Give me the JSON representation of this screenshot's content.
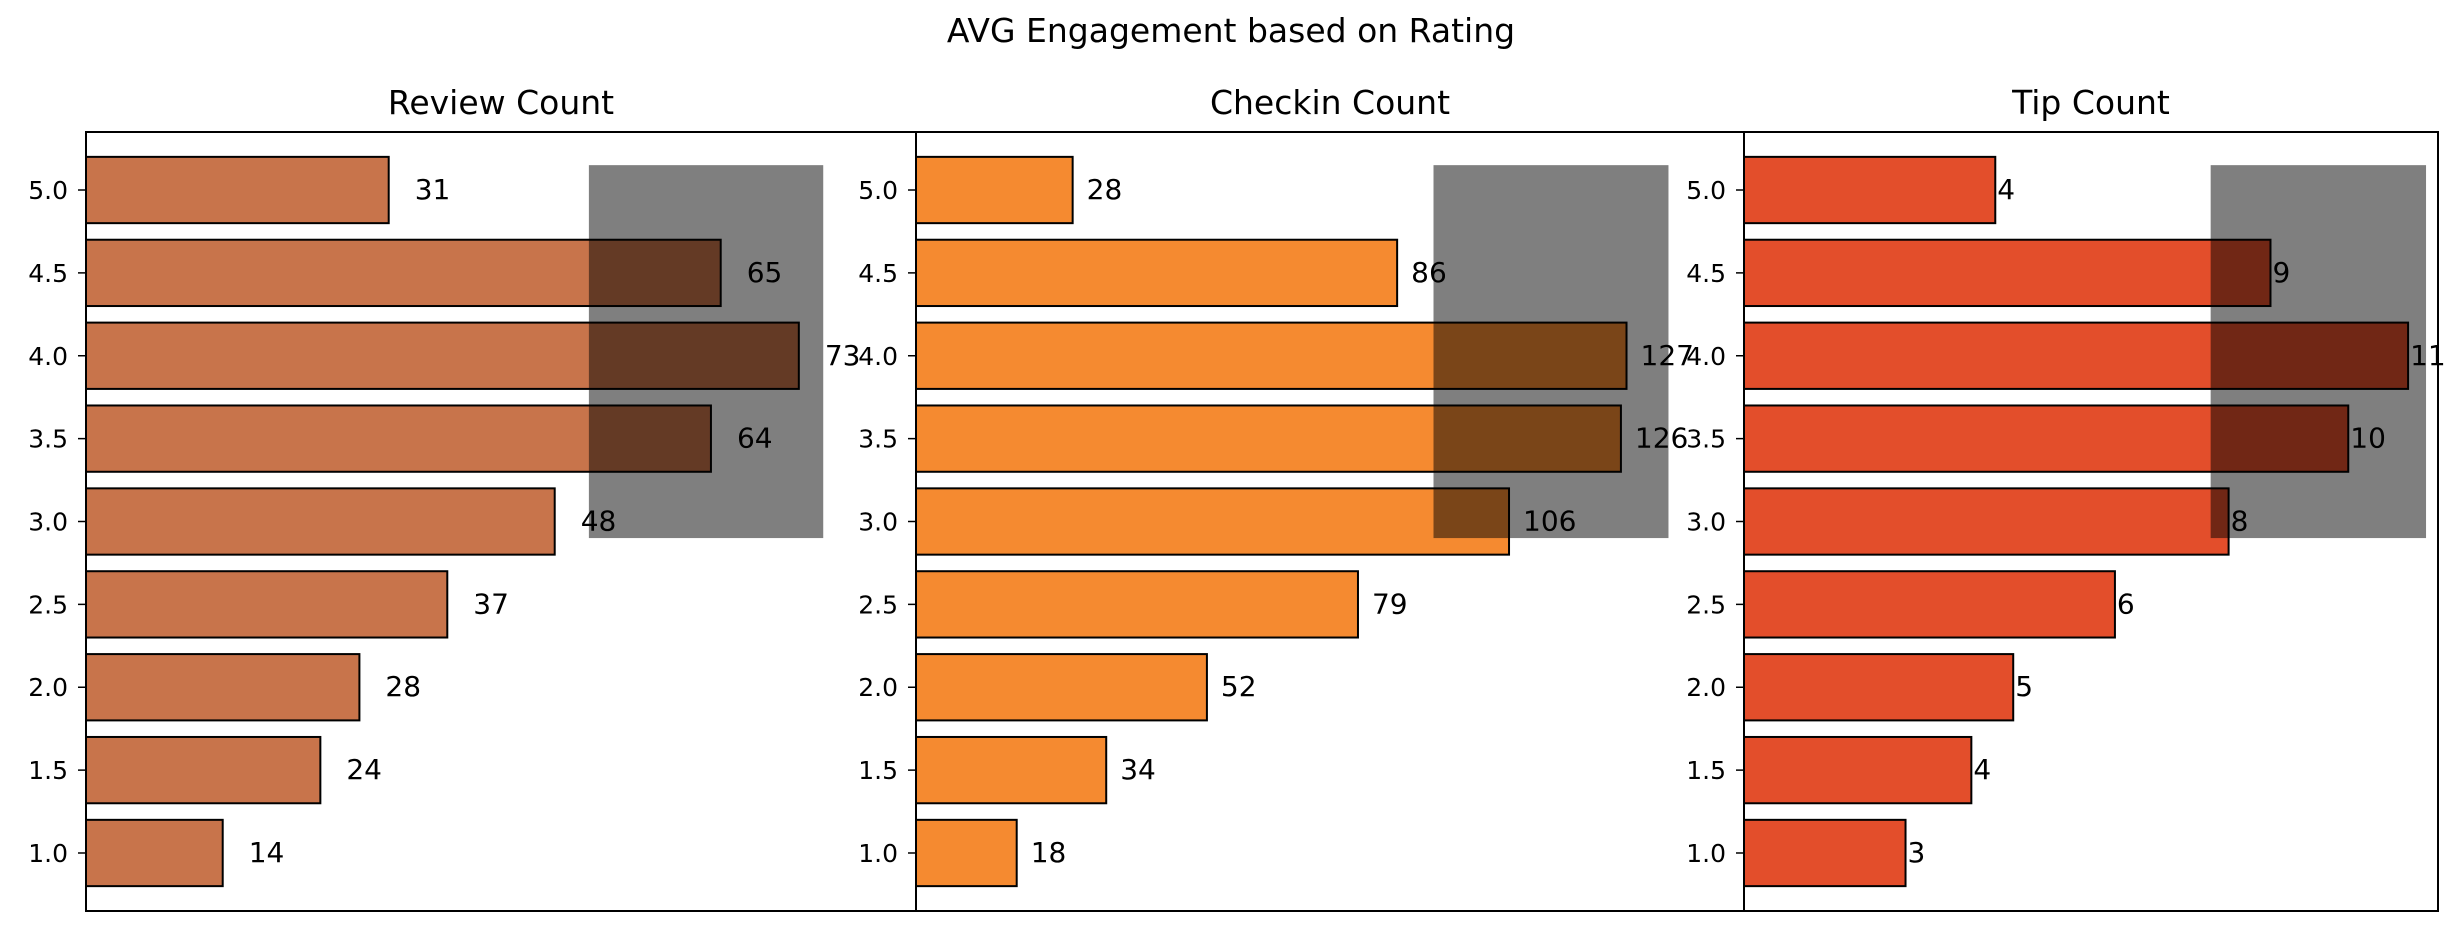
{
  "figure": {
    "title": "AVG Engagement based on Rating",
    "highlight_color": "#000000",
    "highlight_opacity": 0.5
  },
  "chart_data": [
    {
      "type": "bar",
      "orientation": "horizontal",
      "title": "Review Count",
      "categories": [
        "1.0",
        "1.5",
        "2.0",
        "2.5",
        "3.0",
        "3.5",
        "4.0",
        "4.5",
        "5.0"
      ],
      "values": [
        14,
        24,
        28,
        37,
        48,
        64,
        73,
        65,
        31
      ],
      "value_labels": [
        "14",
        "24",
        "28",
        "37",
        "48",
        "64",
        "73",
        "65",
        "31"
      ],
      "color": "#c8744b",
      "xlim": [
        0,
        85
      ],
      "highlight": {
        "x_range": [
          51.5,
          75.5
        ],
        "y_range": [
          "2.9 approx",
          "5.2 approx"
        ],
        "y_from": 2.9,
        "y_to": 5.15
      }
    },
    {
      "type": "bar",
      "orientation": "horizontal",
      "title": "Checkin Count",
      "categories": [
        "1.0",
        "1.5",
        "2.0",
        "2.5",
        "3.0",
        "3.5",
        "4.0",
        "4.5",
        "5.0"
      ],
      "values": [
        18,
        34,
        52,
        79,
        106,
        126,
        127,
        86,
        28
      ],
      "value_labels": [
        "18",
        "34",
        "52",
        "79",
        "106",
        "126",
        "127",
        "86",
        "28"
      ],
      "color": "#f58a30",
      "xlim": [
        0,
        148
      ],
      "highlight": {
        "x_from": 92.5,
        "x_to": 134.5,
        "y_from": 2.9,
        "y_to": 5.15
      }
    },
    {
      "type": "bar",
      "orientation": "horizontal",
      "title": "Tip Count",
      "categories": [
        "1.0",
        "1.5",
        "2.0",
        "2.5",
        "3.0",
        "3.5",
        "4.0",
        "4.5",
        "5.0"
      ],
      "values": [
        3,
        4,
        5,
        6,
        8,
        10,
        11,
        9,
        4
      ],
      "value_labels": [
        "3",
        "4",
        "5",
        "6",
        "8",
        "10",
        "11",
        "9",
        "4"
      ],
      "bar_values": [
        2.7,
        3.8,
        4.5,
        6.2,
        8.1,
        10.1,
        11.1,
        8.8,
        4.2
      ],
      "color": "#e34e2b",
      "xlim": [
        0,
        11.6
      ],
      "highlight": {
        "x_from": 7.8,
        "x_to": 11.4,
        "y_from": 2.9,
        "y_to": 5.15
      }
    }
  ]
}
